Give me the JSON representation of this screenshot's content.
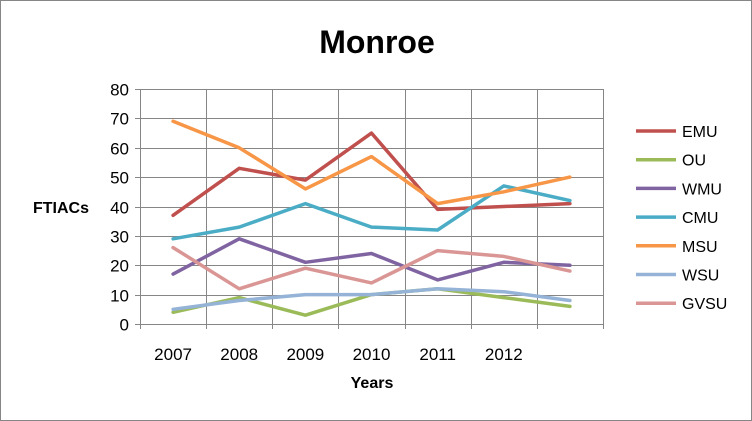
{
  "chart_data": {
    "type": "line",
    "title": "Monroe",
    "xlabel": "Years",
    "ylabel": "FTIACs",
    "ylim": [
      0,
      80
    ],
    "ytick_step": 10,
    "grid": true,
    "legend_position": "right",
    "x_labels": [
      "2007",
      "2008",
      "2009",
      "2010",
      "2011",
      "2012",
      ""
    ],
    "series": [
      {
        "name": "EMU",
        "color": "#C0504D",
        "values": [
          37,
          53,
          49,
          65,
          39,
          40,
          41
        ]
      },
      {
        "name": "OU",
        "color": "#9BBB59",
        "values": [
          4,
          9,
          3,
          10,
          12,
          9,
          6
        ]
      },
      {
        "name": "WMU",
        "color": "#8064A2",
        "values": [
          17,
          29,
          21,
          24,
          15,
          21,
          20
        ]
      },
      {
        "name": "CMU",
        "color": "#4BACC6",
        "values": [
          29,
          33,
          41,
          33,
          32,
          47,
          42
        ]
      },
      {
        "name": "MSU",
        "color": "#F79646",
        "values": [
          69,
          60,
          46,
          57,
          41,
          45,
          50
        ]
      },
      {
        "name": "WSU",
        "color": "#95B3D7",
        "values": [
          5,
          8,
          10,
          10,
          12,
          11,
          8
        ]
      },
      {
        "name": "GVSU",
        "color": "#D99694",
        "values": [
          26,
          12,
          19,
          14,
          25,
          23,
          18
        ]
      }
    ]
  }
}
